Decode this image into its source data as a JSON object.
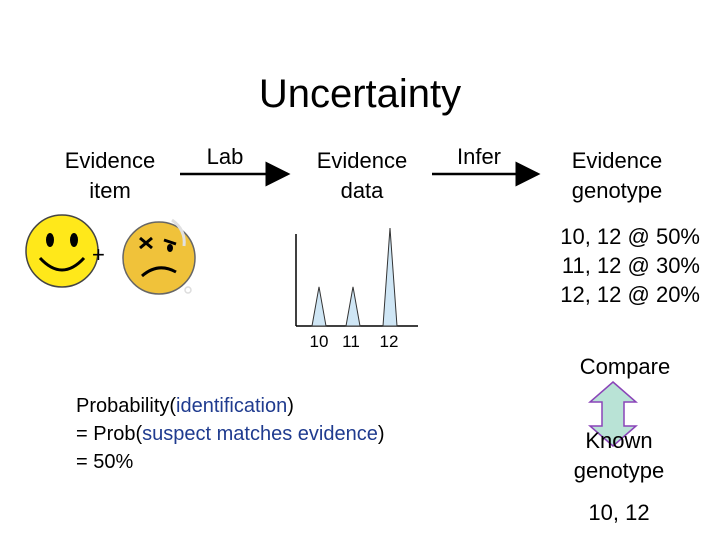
{
  "title": "Uncertainty",
  "flow": {
    "evidence_item": "Evidence item",
    "lab": "Lab",
    "evidence_data": "Evidence data",
    "infer": "Infer",
    "evidence_genotype": "Evidence genotype"
  },
  "faces": {
    "plus": "+"
  },
  "genotype_probs": [
    "10, 12 @ 50%",
    "11, 12 @ 30%",
    "12, 12 @ 20%"
  ],
  "peaks": {
    "labels": [
      "10",
      "11",
      "12"
    ],
    "relative_heights": [
      0.4,
      0.4,
      1.0
    ]
  },
  "compare": "Compare",
  "known_genotype": {
    "label": "Known genotype",
    "value": "10, 12"
  },
  "probability": {
    "line1_prefix": "Probability(",
    "line1_term": "identification",
    "line1_suffix": ")",
    "line2_prefix": "= Prob(",
    "line2_term": "suspect matches evidence",
    "line2_suffix": ")",
    "line3": "= 50%"
  },
  "colors": {
    "face_yellow": "#ffe81a",
    "peak_fill": "#cfe6f5",
    "arrow_fill": "#b9e3d6",
    "term_blue": "#1f3b8f"
  }
}
